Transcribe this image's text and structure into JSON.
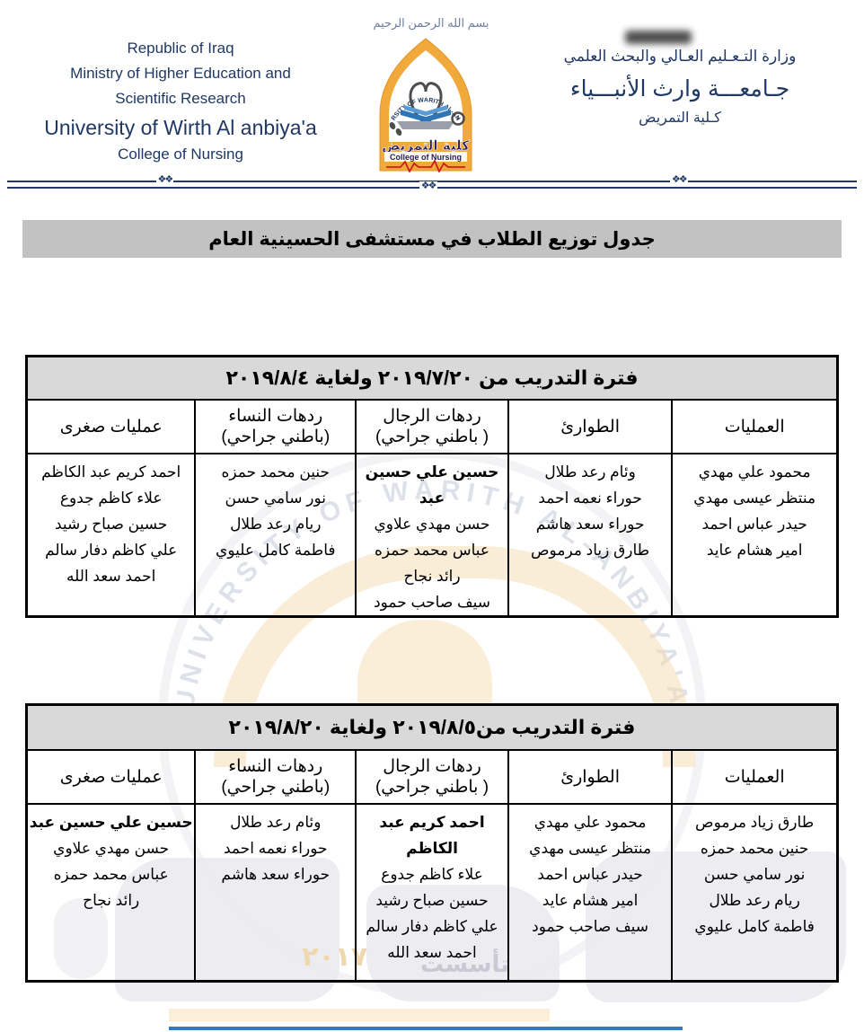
{
  "document": {
    "bismillah": "بسم الله الرحمن الرحيم",
    "header": {
      "left": {
        "line1": "Republic of Iraq",
        "line2": "Ministry of Higher Education and",
        "line3": "Scientific Research",
        "line4": "University of Wirth Al anbiya'a",
        "line5": "College of Nursing"
      },
      "right": {
        "line1": "وزارة التـعـليم العـالي والبحث العلمي",
        "line2": "جـامعـــة وارث الأنبـــياء",
        "line3": "كـلية التمريض"
      },
      "logo": {
        "curved_text": "UNIVERSITY OF WARITH AL-ANBIYAA",
        "arabic_label": "كلية التمريض",
        "english_label": "College of Nursing"
      }
    },
    "title": "جدول توزيع الطلاب في مستشفى الحسينية العام",
    "ornament": "❖❖",
    "watermark": {
      "seal_text": "UNIVERSITY OF WARITH AL-ANBIYA'A",
      "established": "تأسست",
      "year": "٢٠١٧"
    },
    "colors": {
      "navy": "#1f3864",
      "title_bar_bg": "#c2c2c2",
      "period_bg": "#d9d9d9",
      "logo_gold": "#f2a93b",
      "ecg_red": "#cf1d1d",
      "book_blue": "#2e75b6",
      "bottom_band": "#fcefda",
      "bottom_line": "#2f7bc4"
    },
    "tables": [
      {
        "period": "فترة التدريب من ٢٠١٩/٧/٢٠ ولغاية ٢٠١٩/٨/٤",
        "columns": [
          {
            "title": "العمليات",
            "sub": ""
          },
          {
            "title": "الطوارئ",
            "sub": ""
          },
          {
            "title": "ردهات الرجال",
            "sub": "( باطني جراحي)"
          },
          {
            "title": "ردهات النساء",
            "sub": "(باطني جراحي)"
          },
          {
            "title": "عمليات صغرى",
            "sub": ""
          }
        ],
        "cells": [
          [
            {
              "text": "محمود علي مهدي",
              "bold": false
            },
            {
              "text": "منتظر عيسى مهدي",
              "bold": false
            },
            {
              "text": "حيدر عباس احمد",
              "bold": false
            },
            {
              "text": "امير هشام عايد",
              "bold": false
            }
          ],
          [
            {
              "text": "وئام رعد طلال",
              "bold": false
            },
            {
              "text": "حوراء نعمه احمد",
              "bold": false
            },
            {
              "text": "حوراء سعد هاشم",
              "bold": false
            },
            {
              "text": "طارق زياد مرموص",
              "bold": false
            }
          ],
          [
            {
              "text": "حسين علي حسين عبد",
              "bold": true
            },
            {
              "text": "حسن مهدي علاوي",
              "bold": false
            },
            {
              "text": "عباس محمد حمزه",
              "bold": false
            },
            {
              "text": "رائد نجاح",
              "bold": false
            },
            {
              "text": "سيف صاحب حمود",
              "bold": false
            }
          ],
          [
            {
              "text": "حنين محمد حمزه",
              "bold": false
            },
            {
              "text": "نور سامي حسن",
              "bold": false
            },
            {
              "text": "ريام رعد طلال",
              "bold": false
            },
            {
              "text": "فاطمة كامل عليوي",
              "bold": false
            }
          ],
          [
            {
              "text": "احمد كريم عبد الكاظم",
              "bold": false
            },
            {
              "text": "علاء كاظم جدوع",
              "bold": false
            },
            {
              "text": "حسين صباح رشيد",
              "bold": false
            },
            {
              "text": "علي كاظم دفار سالم",
              "bold": false
            },
            {
              "text": "احمد سعد الله",
              "bold": false
            }
          ]
        ]
      },
      {
        "period": "فترة التدريب من٢٠١٩/٨/٥ ولغاية ٢٠١٩/٨/٢٠",
        "columns": [
          {
            "title": "العمليات",
            "sub": ""
          },
          {
            "title": "الطوارئ",
            "sub": ""
          },
          {
            "title": "ردهات الرجال",
            "sub": "( باطني جراحي)"
          },
          {
            "title": "ردهات النساء",
            "sub": "(باطني جراحي)"
          },
          {
            "title": "عمليات صغرى",
            "sub": ""
          }
        ],
        "cells": [
          [
            {
              "text": "طارق زياد مرموص",
              "bold": false
            },
            {
              "text": "حنين محمد حمزه",
              "bold": false
            },
            {
              "text": "نور سامي حسن",
              "bold": false
            },
            {
              "text": "ريام رعد طلال",
              "bold": false
            },
            {
              "text": "فاطمة كامل عليوي",
              "bold": false
            }
          ],
          [
            {
              "text": "محمود علي مهدي",
              "bold": false
            },
            {
              "text": "منتظر عيسى مهدي",
              "bold": false
            },
            {
              "text": "حيدر عباس احمد",
              "bold": false
            },
            {
              "text": "امير هشام عايد",
              "bold": false
            },
            {
              "text": "سيف صاحب حمود",
              "bold": false
            }
          ],
          [
            {
              "text": "احمد كريم عبد الكاظم",
              "bold": true
            },
            {
              "text": "علاء كاظم جدوع",
              "bold": false
            },
            {
              "text": "حسين صباح رشيد",
              "bold": false
            },
            {
              "text": "علي كاظم دفار سالم",
              "bold": false
            },
            {
              "text": "احمد سعد الله",
              "bold": false
            }
          ],
          [
            {
              "text": "وئام رعد طلال",
              "bold": false
            },
            {
              "text": "حوراء نعمه احمد",
              "bold": false
            },
            {
              "text": "حوراء سعد هاشم",
              "bold": false
            }
          ],
          [
            {
              "text": "حسين علي حسين عبد",
              "bold": true
            },
            {
              "text": "حسن مهدي علاوي",
              "bold": false
            },
            {
              "text": "عباس محمد حمزه",
              "bold": false
            },
            {
              "text": "رائد نجاح",
              "bold": false
            }
          ]
        ]
      }
    ]
  }
}
